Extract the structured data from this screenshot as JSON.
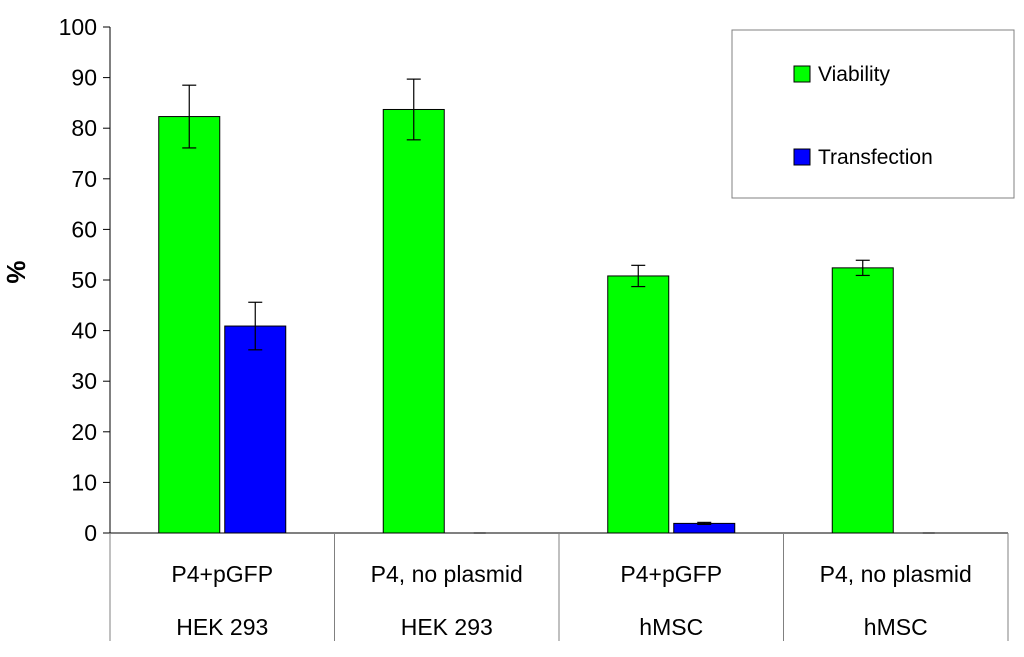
{
  "chart_data": {
    "type": "bar",
    "title": "",
    "xlabel": "",
    "ylabel": "%",
    "ylim": [
      0,
      100
    ],
    "yticks": [
      0,
      10,
      20,
      30,
      40,
      50,
      60,
      70,
      80,
      90,
      100
    ],
    "grid": false,
    "legend_position": "top-right",
    "categories": [
      {
        "label": "P4+pGFP",
        "group": "HEK 293"
      },
      {
        "label": "P4, no plasmid",
        "group": "HEK 293"
      },
      {
        "label": "P4+pGFP",
        "group": "hMSC"
      },
      {
        "label": "P4, no plasmid",
        "group": "hMSC"
      }
    ],
    "series": [
      {
        "name": "Viability",
        "color": "#00ff00",
        "values": [
          82.3,
          83.7,
          50.8,
          52.4
        ],
        "errors": [
          6.2,
          6.0,
          2.1,
          1.5
        ]
      },
      {
        "name": "Transfection",
        "color": "#0000ff",
        "values": [
          40.9,
          0,
          1.9,
          0
        ],
        "errors": [
          4.7,
          0,
          0.2,
          0
        ]
      }
    ]
  }
}
